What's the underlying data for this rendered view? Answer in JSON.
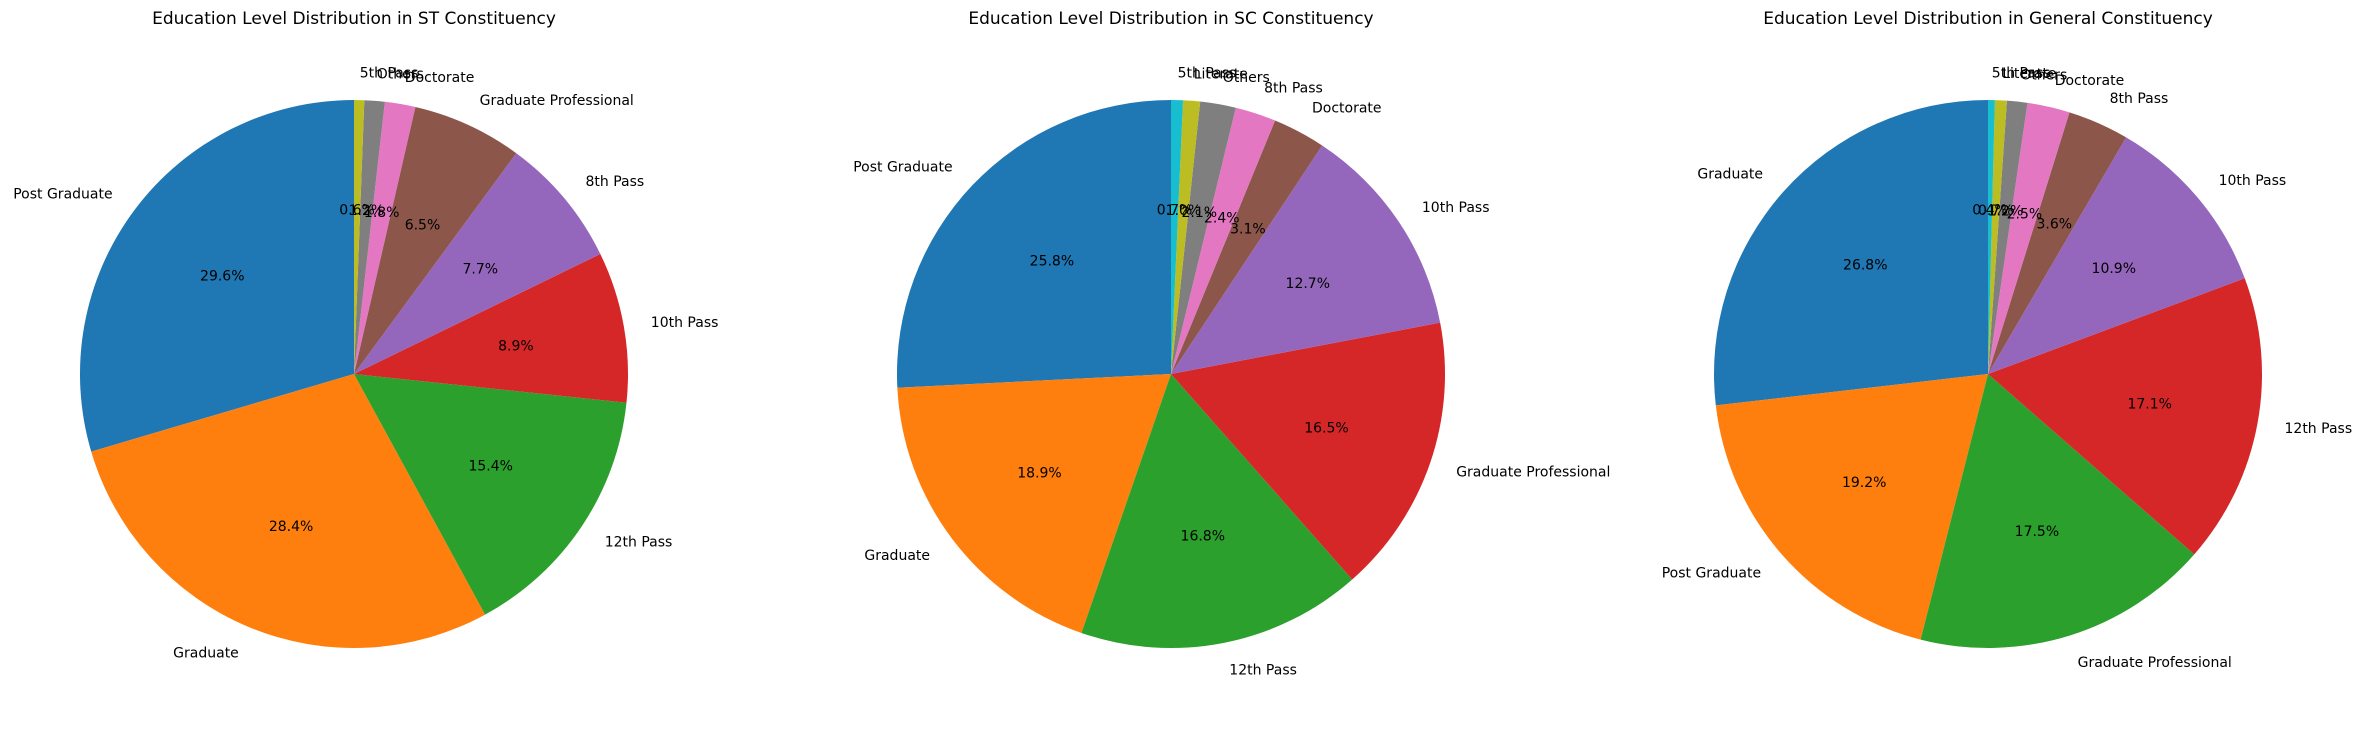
{
  "chart_data": [
    {
      "type": "pie",
      "title": "Education Level Distribution in ST Constituency",
      "start_angle_deg": 90,
      "direction": "counterclockwise",
      "autopct": "%1.1f%%",
      "slices": [
        {
          "label": "Post Graduate",
          "value": 29.6,
          "pct_text": "29.6%",
          "color": "#1f77b4"
        },
        {
          "label": "Graduate",
          "value": 28.4,
          "pct_text": "28.4%",
          "color": "#ff7f0e"
        },
        {
          "label": "12th Pass",
          "value": 15.4,
          "pct_text": "15.4%",
          "color": "#2ca02c"
        },
        {
          "label": "10th Pass",
          "value": 8.9,
          "pct_text": "8.9%",
          "color": "#d62728"
        },
        {
          "label": "8th Pass",
          "value": 7.7,
          "pct_text": "7.7%",
          "color": "#9467bd"
        },
        {
          "label": "Graduate Professional",
          "value": 6.5,
          "pct_text": "6.5%",
          "color": "#8c564b"
        },
        {
          "label": "Doctorate",
          "value": 1.8,
          "pct_text": "1.8%",
          "color": "#e377c2"
        },
        {
          "label": "Others",
          "value": 1.2,
          "pct_text": "1.2%",
          "color": "#7f7f7f"
        },
        {
          "label": "5th Pass",
          "value": 0.6,
          "pct_text": "0.6%",
          "color": "#bcbd22"
        }
      ]
    },
    {
      "type": "pie",
      "title": "Education Level Distribution in SC Constituency",
      "start_angle_deg": 90,
      "direction": "counterclockwise",
      "autopct": "%1.1f%%",
      "slices": [
        {
          "label": "Post Graduate",
          "value": 25.8,
          "pct_text": "25.8%",
          "color": "#1f77b4"
        },
        {
          "label": "Graduate",
          "value": 18.9,
          "pct_text": "18.9%",
          "color": "#ff7f0e"
        },
        {
          "label": "12th Pass",
          "value": 16.8,
          "pct_text": "16.8%",
          "color": "#2ca02c"
        },
        {
          "label": "Graduate Professional",
          "value": 16.5,
          "pct_text": "16.5%",
          "color": "#d62728"
        },
        {
          "label": "10th Pass",
          "value": 12.7,
          "pct_text": "12.7%",
          "color": "#9467bd"
        },
        {
          "label": "Doctorate",
          "value": 3.1,
          "pct_text": "3.1%",
          "color": "#8c564b"
        },
        {
          "label": "8th Pass",
          "value": 2.4,
          "pct_text": "2.4%",
          "color": "#e377c2"
        },
        {
          "label": "Others",
          "value": 2.1,
          "pct_text": "2.1%",
          "color": "#7f7f7f"
        },
        {
          "label": "Literate",
          "value": 1.0,
          "pct_text": "1.0%",
          "color": "#bcbd22"
        },
        {
          "label": "5th Pass",
          "value": 0.7,
          "pct_text": "0.7%",
          "color": "#17becf"
        }
      ]
    },
    {
      "type": "pie",
      "title": "Education Level Distribution in General Constituency",
      "start_angle_deg": 90,
      "direction": "counterclockwise",
      "autopct": "%1.1f%%",
      "slices": [
        {
          "label": "Graduate",
          "value": 26.8,
          "pct_text": "26.8%",
          "color": "#1f77b4"
        },
        {
          "label": "Post Graduate",
          "value": 19.2,
          "pct_text": "19.2%",
          "color": "#ff7f0e"
        },
        {
          "label": "Graduate Professional",
          "value": 17.5,
          "pct_text": "17.5%",
          "color": "#2ca02c"
        },
        {
          "label": "12th Pass",
          "value": 17.1,
          "pct_text": "17.1%",
          "color": "#d62728"
        },
        {
          "label": "10th Pass",
          "value": 10.9,
          "pct_text": "10.9%",
          "color": "#9467bd"
        },
        {
          "label": "8th Pass",
          "value": 3.6,
          "pct_text": "3.6%",
          "color": "#8c564b"
        },
        {
          "label": "Doctorate",
          "value": 2.5,
          "pct_text": "2.5%",
          "color": "#e377c2"
        },
        {
          "label": "Others",
          "value": 1.2,
          "pct_text": "1.2%",
          "color": "#7f7f7f"
        },
        {
          "label": "Literate",
          "value": 0.7,
          "pct_text": "0.7%",
          "color": "#bcbd22"
        },
        {
          "label": "5th Pass",
          "value": 0.4,
          "pct_text": "0.4%",
          "color": "#17becf"
        }
      ]
    }
  ]
}
